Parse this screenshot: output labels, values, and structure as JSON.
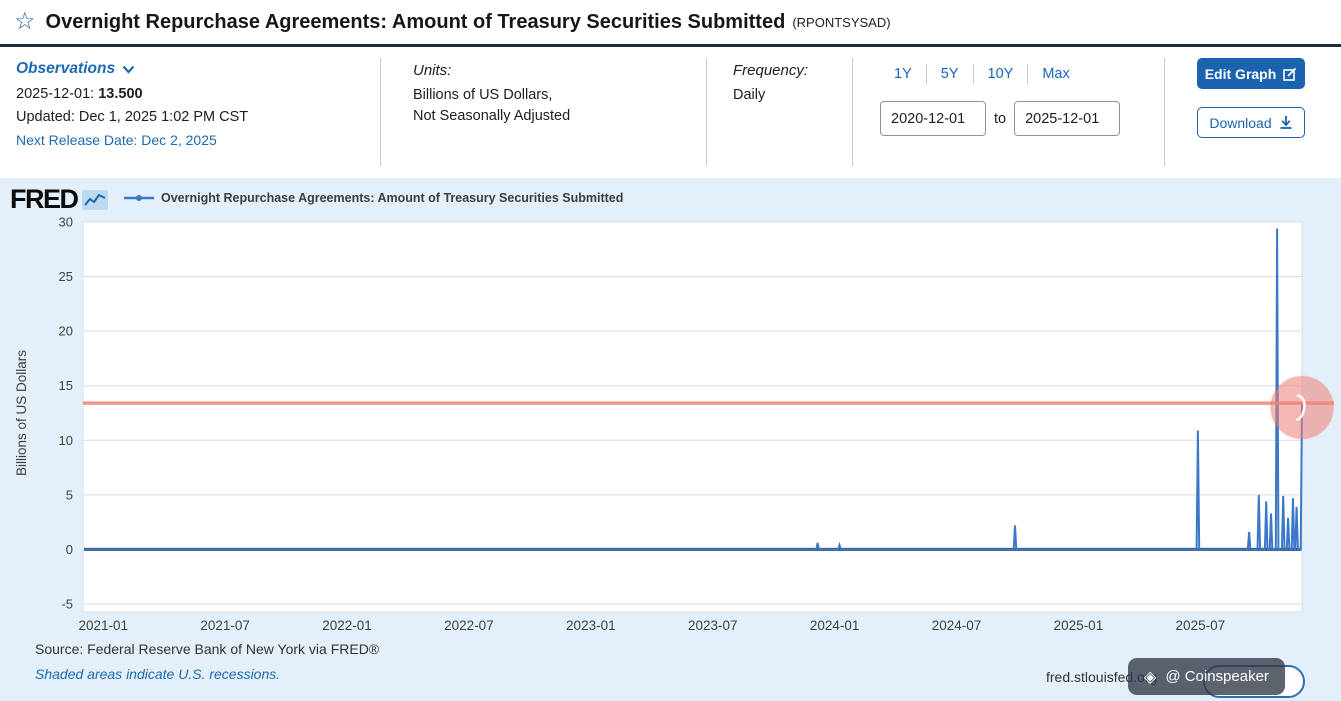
{
  "header": {
    "title": "Overnight Repurchase Agreements: Amount of Treasury Securities Submitted",
    "series_id": "(RPONTSYSAD)"
  },
  "observations": {
    "label": "Observations",
    "latest_date": "2025-12-01:",
    "latest_value": "13.500",
    "updated": "Updated: Dec 1, 2025 1:02 PM CST",
    "next_release": "Next Release Date: Dec 2, 2025"
  },
  "units": {
    "label": "Units:",
    "line1": "Billions of US Dollars,",
    "line2": "Not Seasonally Adjusted"
  },
  "frequency": {
    "label": "Frequency:",
    "value": "Daily"
  },
  "range": {
    "buttons": [
      "1Y",
      "5Y",
      "10Y",
      "Max"
    ],
    "start": "2020-12-01",
    "to_label": "to",
    "end": "2025-12-01"
  },
  "actions": {
    "edit": "Edit Graph",
    "download": "Download"
  },
  "chart": {
    "logo": "FRED",
    "legend": "Overnight Repurchase Agreements: Amount of Treasury Securities Submitted",
    "ylabel": "Billions of US Dollars"
  },
  "footer": {
    "source": "Source: Federal Reserve Bank of New York via FRED®",
    "shaded": "Shaded areas indicate U.S. recessions.",
    "site": "fred.stlouisfed.org",
    "watermark_icon": "◈",
    "watermark": "@ Coinspeaker"
  },
  "colors": {
    "accent_blue": "#1b6ab3",
    "line_blue": "#3b78c9",
    "baseline_navy": "#1d2c4f",
    "highlight_red": "#f0837b",
    "panel_bg": "#e4f0f9"
  },
  "chart_data": {
    "type": "line",
    "title": "Overnight Repurchase Agreements: Amount of Treasury Securities Submitted",
    "xlabel": "",
    "ylabel": "Billions of US Dollars",
    "x_range": [
      2020.917,
      2025.917
    ],
    "ylim": [
      -5,
      30
    ],
    "yticks": [
      30,
      25,
      20,
      15,
      10,
      5,
      0,
      -5
    ],
    "xticks": [
      {
        "t": 2021.0,
        "label": "2021-01"
      },
      {
        "t": 2021.5,
        "label": "2021-07"
      },
      {
        "t": 2022.0,
        "label": "2022-01"
      },
      {
        "t": 2022.5,
        "label": "2022-07"
      },
      {
        "t": 2023.0,
        "label": "2023-01"
      },
      {
        "t": 2023.5,
        "label": "2023-07"
      },
      {
        "t": 2024.0,
        "label": "2024-01"
      },
      {
        "t": 2024.5,
        "label": "2024-07"
      },
      {
        "t": 2025.0,
        "label": "2025-01"
      },
      {
        "t": 2025.5,
        "label": "2025-07"
      }
    ],
    "grid": "horizontal",
    "legend_position": "top",
    "baseline_value": 0,
    "spikes": [
      {
        "x": 2023.93,
        "value": 0.6
      },
      {
        "x": 2024.02,
        "value": 0.4
      },
      {
        "x": 2024.74,
        "value": 2.2
      },
      {
        "x": 2025.49,
        "value": 10.9
      },
      {
        "x": 2025.7,
        "value": 1.6
      },
      {
        "x": 2025.74,
        "value": 5.0
      },
      {
        "x": 2025.77,
        "value": 4.4
      },
      {
        "x": 2025.79,
        "value": 3.3
      },
      {
        "x": 2025.815,
        "value": 29.4
      },
      {
        "x": 2025.84,
        "value": 4.9
      },
      {
        "x": 2025.86,
        "value": 2.9
      },
      {
        "x": 2025.88,
        "value": 4.7
      },
      {
        "x": 2025.895,
        "value": 3.9
      },
      {
        "x": 2025.917,
        "value": 13.5
      }
    ],
    "annotations": {
      "hline_value": 13.4,
      "highlight_circle": {
        "x": 2025.917,
        "y": 13.0,
        "r": 31
      }
    }
  }
}
